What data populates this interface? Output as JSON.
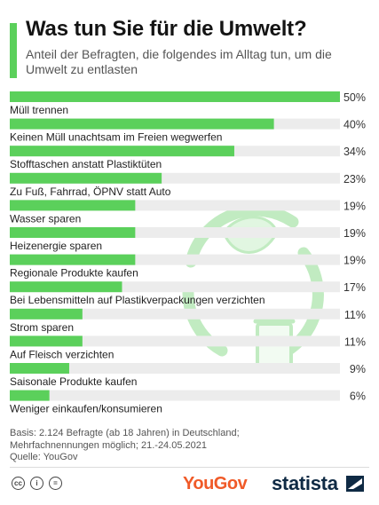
{
  "header": {
    "title": "Was tun Sie für die Umwelt?",
    "subtitle": "Anteil der Befragten, die folgendes im Alltag tun, um die Umwelt zu entlasten"
  },
  "chart_data": {
    "type": "bar",
    "orientation": "horizontal",
    "title": "Was tun Sie für die Umwelt?",
    "subtitle": "Anteil der Befragten, die folgendes im Alltag tun, um die Umwelt zu entlasten",
    "categories": [
      "Müll trennen",
      "Keinen Müll unachtsam im Freien wegwerfen",
      "Stofftaschen anstatt Plastiktüten",
      "Zu Fuß, Fahrrad, ÖPNV statt Auto",
      "Wasser sparen",
      "Heizenergie sparen",
      "Regionale Produkte kaufen",
      "Bei Lebensmitteln auf Plastikverpackungen verzichten",
      "Strom sparen",
      "Auf Fleisch verzichten",
      "Saisonale Produkte kaufen",
      "Weniger einkaufen/konsumieren"
    ],
    "values": [
      50,
      40,
      34,
      23,
      19,
      19,
      19,
      17,
      11,
      11,
      9,
      6
    ],
    "value_labels": [
      "50%",
      "40%",
      "34%",
      "23%",
      "19%",
      "19%",
      "19%",
      "17%",
      "11%",
      "11%",
      "9%",
      "6%"
    ],
    "unit": "%",
    "xlim": [
      0,
      50
    ],
    "grid": false,
    "legend": "none",
    "bar_color": "#5bd05b"
  },
  "footnote": {
    "basis": "Basis: 2.124 Befragte (ab 18 Jahren) in Deutschland;",
    "notes": "Mehrfachnennungen möglich; 21.-24.05.2021",
    "source": "Quelle: YouGov"
  },
  "footer": {
    "license_icons": [
      "cc-icon",
      "by-icon",
      "nd-icon"
    ],
    "license_glyphs": [
      "cc",
      "i",
      "="
    ],
    "partner_logo": "YouGov",
    "brand_logo": "statista"
  },
  "colors": {
    "accent": "#5bd05b",
    "bar": "#5bd05b",
    "yougov": "#f05a28",
    "statista": "#0f2a44"
  }
}
